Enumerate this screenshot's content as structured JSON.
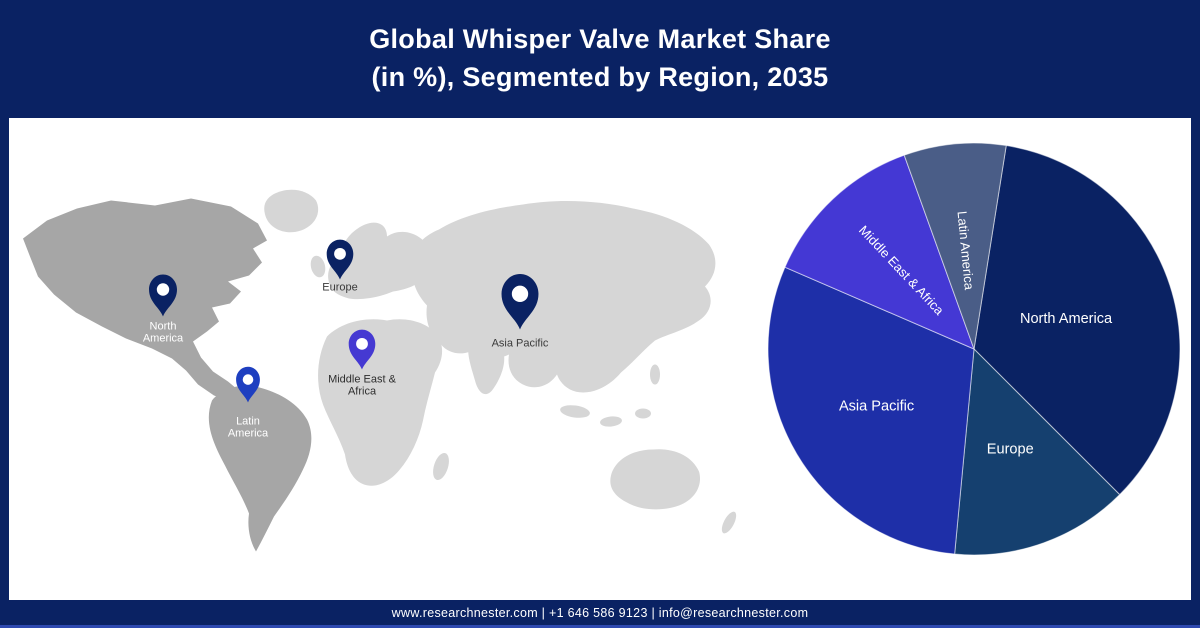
{
  "header": {
    "title_line1": "Global Whisper Valve Market Share",
    "title_line2": "(in %), Segmented by Region, 2035",
    "background_color": "#0a2263",
    "text_color": "#ffffff"
  },
  "map": {
    "pins": [
      {
        "id": "north-america",
        "label": "North America",
        "pin_color": "#0a2263",
        "label_color": "#ffffff"
      },
      {
        "id": "europe",
        "label": "Europe",
        "pin_color": "#0a2263",
        "label_color": "#3a3a3a"
      },
      {
        "id": "latin-america",
        "label": "Latin America",
        "pin_color": "#1e3fc0",
        "label_color": "#ffffff"
      },
      {
        "id": "middle-east-africa",
        "label": "Middle East & Africa",
        "pin_color": "#4539d2",
        "label_color": "#2e2e2e"
      },
      {
        "id": "asia-pacific",
        "label": "Asia Pacific",
        "pin_color": "#0a2263",
        "label_color": "#3a3a3a"
      }
    ]
  },
  "chart_data": {
    "type": "pie",
    "title": "Global Whisper Valve Market Share (in %), Segmented by Region, 2035",
    "unit": "%",
    "start_angle_deg": 9,
    "legend_position": "labels-on-slices",
    "slices": [
      {
        "label": "North America",
        "value": 35,
        "color": "#0a2263",
        "label_rotated": false,
        "label_radius": 0.47
      },
      {
        "label": "Europe",
        "value": 14,
        "color": "#15406f",
        "label_rotated": false,
        "label_radius": 0.52
      },
      {
        "label": "Asia Pacific",
        "value": 30,
        "color": "#1e2fa8",
        "label_rotated": false,
        "label_radius": 0.55
      },
      {
        "label": "Middle East & Africa",
        "value": 13,
        "color": "#4438d4",
        "label_rotated": true,
        "label_radius": 0.52
      },
      {
        "label": "Latin America",
        "value": 8,
        "color": "#4a5d87",
        "label_rotated": true,
        "label_radius": 0.48
      }
    ]
  },
  "footer": {
    "text": "www.researchnester.com | +1 646 586 9123 | info@researchnester.com",
    "background_color": "#0a2263"
  }
}
